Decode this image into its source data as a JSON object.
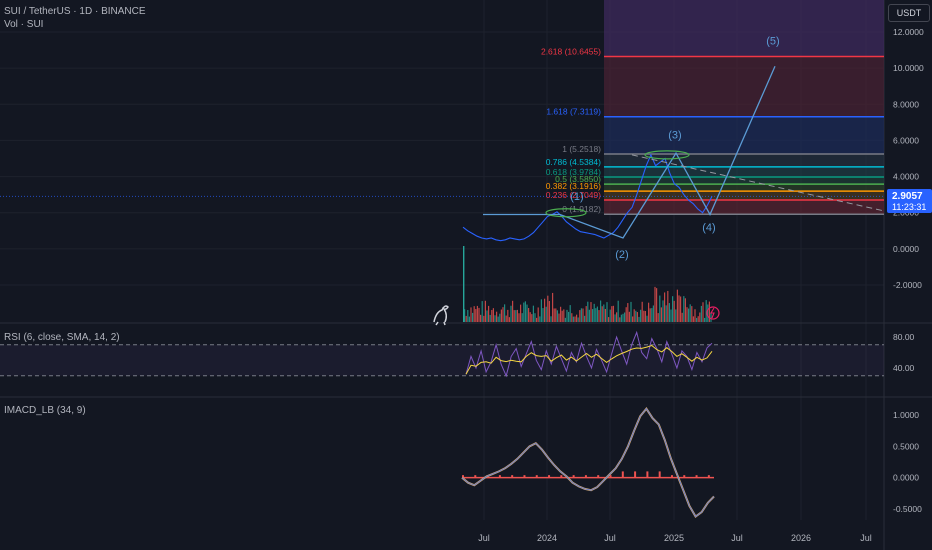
{
  "header": {
    "symbol_line": "SUI / TetherUS · 1D · BINANCE",
    "vol_line": "Vol · SUI",
    "rsi_line": "RSI (6, close, SMA, 14, 2)",
    "macd_line": "IMACD_LB (34, 9)",
    "currency": "USDT"
  },
  "last_price": {
    "value": "2.9057",
    "countdown": "11:23:31"
  },
  "colors": {
    "background": "#131722",
    "price_line": "#2962ff",
    "rsi": "#7e57c2",
    "rsi_ma": "#f5d742",
    "volume_up": "#26a69a",
    "volume_down": "#ef5350",
    "macd_line": "#d1a873",
    "macd_hist": "#ef5350"
  },
  "chart_data": [
    {
      "type": "line",
      "name_shown": "SUI / TetherUS · 1D · BINANCE",
      "x_axis_ticks": [
        "Jul",
        "2024",
        "Jul",
        "2025",
        "Jul",
        "2026",
        "Jul"
      ],
      "y_ticks": [
        "12.0000",
        "10.0000",
        "8.0000",
        "6.0000",
        "4.0000",
        "2.0000",
        "0.0000",
        "-2.0000"
      ],
      "y_range": [
        -3.9,
        13.9
      ],
      "series": [
        {
          "values": [
            1.2,
            1.0,
            0.85,
            0.7,
            0.6,
            0.55,
            0.6,
            0.5,
            0.45,
            0.5,
            0.6,
            0.55,
            0.5,
            0.55,
            0.7,
            0.9,
            1.2,
            1.5,
            1.8,
            1.9,
            2.05,
            1.8,
            1.5,
            1.3,
            1.1,
            0.95,
            0.9,
            0.85,
            0.8,
            0.7,
            0.6,
            0.75,
            0.9,
            1.2,
            1.6,
            2.0,
            2.3,
            3.0,
            3.8,
            4.6,
            5.2,
            4.6,
            4.8,
            5.0,
            4.2,
            3.6,
            3.4,
            3.0,
            2.7,
            2.5,
            2.2,
            2.0,
            2.4,
            2.9057
          ]
        }
      ],
      "fibonacci_levels": [
        {
          "label": "0 (1.9182)",
          "value": 1.9182,
          "color": "#787b86"
        },
        {
          "label": "0.236 (2.7049)",
          "value": 2.7049,
          "color": "#f23645"
        },
        {
          "label": "0.382 (3.1916)",
          "value": 3.1916,
          "color": "#ff9800"
        },
        {
          "label": "0.5 (3.5850)",
          "value": 3.585,
          "color": "#4caf50"
        },
        {
          "label": "0.618 (3.9784)",
          "value": 3.9784,
          "color": "#089981"
        },
        {
          "label": "0.786 (4.5384)",
          "value": 4.5384,
          "color": "#00bcd4"
        },
        {
          "label": "1 (5.2518)",
          "value": 5.2518,
          "color": "#787b86"
        },
        {
          "label": "1.618 (7.3119)",
          "value": 7.3119,
          "color": "#2962ff"
        },
        {
          "label": "2.618 (10.6455)",
          "value": 10.6455,
          "color": "#f23645"
        }
      ],
      "wave_labels": [
        "(1)",
        "(2)",
        "(3)",
        "(4)",
        "(5)"
      ]
    },
    {
      "type": "line",
      "name_shown": "RSI (6, close, SMA, 14, 2)",
      "y_ticks": [
        "80.00",
        "40.00"
      ],
      "bands": [
        70,
        30
      ],
      "values": [
        32,
        55,
        40,
        62,
        35,
        48,
        70,
        45,
        30,
        55,
        65,
        42,
        58,
        74,
        50,
        38,
        62,
        45,
        68,
        52,
        36,
        60,
        48,
        72,
        55,
        40,
        64,
        50,
        35,
        58,
        80,
        62,
        45,
        70,
        86,
        60,
        52,
        78,
        65,
        48,
        74,
        58,
        40,
        62,
        55,
        38,
        60,
        48,
        66,
        72
      ]
    },
    {
      "type": "line",
      "name_shown": "IMACD_LB (34, 9)",
      "y_ticks": [
        "1.0000",
        "0.5000",
        "0.0000",
        "-0.5000"
      ],
      "values": [
        0.0,
        -0.08,
        -0.12,
        -0.05,
        0.02,
        0.06,
        0.1,
        0.15,
        0.22,
        0.3,
        0.4,
        0.5,
        0.55,
        0.45,
        0.32,
        0.2,
        0.1,
        0.02,
        -0.08,
        -0.14,
        -0.18,
        -0.2,
        -0.15,
        -0.05,
        0.05,
        0.15,
        0.3,
        0.5,
        0.75,
        0.98,
        1.1,
        0.95,
        0.85,
        0.6,
        0.3,
        0.05,
        -0.2,
        -0.45,
        -0.62,
        -0.55,
        -0.4,
        -0.3
      ]
    }
  ]
}
